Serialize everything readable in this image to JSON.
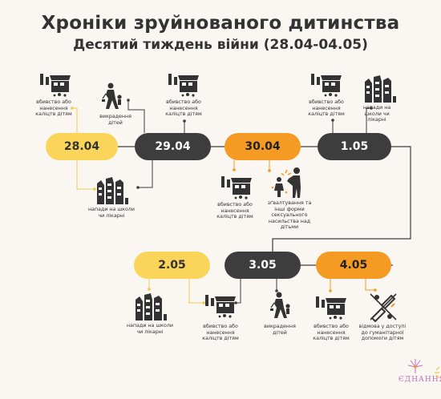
{
  "title": "Хроніки зруйнованого дитинства",
  "subtitle": "Десятий тиждень війни (28.04-04.05)",
  "dates": [
    "28.04",
    "29.04",
    "30.04",
    "1.05",
    "2.05",
    "3.05",
    "4.05"
  ],
  "captions": {
    "kill1": "вбивство або нанесення каліцтв дітям",
    "kidnap1": "викрадення дітей",
    "kill2": "вбивство або нанесення каліцтв дітям",
    "kill3": "вбивство або нанесення каліцтв дітям",
    "attack1": "напади на школи чи лікарні",
    "attack2": "напади на школи чи лікарні",
    "kill4": "вбивство або нанесення каліцтв дітям",
    "violence": "зґвалтування та інші форми сексуального насильства над дітьми",
    "attack3": "напади на школи чи лікарні",
    "kill5": "вбивство або нанесення каліцтв дітям",
    "kidnap2": "викрадення дітей",
    "kill6": "вбивство або нанесення каліцтв дітям",
    "denial": "відмова у доступі до гуманітарної допомоги дітям"
  },
  "logo": "ЄДНАННЯ",
  "colors": {
    "yellow": "#fbd45a",
    "dark": "#3d3d3d",
    "orange": "#f59a23",
    "line": "#3d3d3d",
    "connector_yellow": "#f2c94c",
    "connector_orange": "#f59a23"
  },
  "icons": [
    "building-damage-icon",
    "kidnapping-icon",
    "school-ruins-icon",
    "violence-icon",
    "aid-denied-icon"
  ]
}
